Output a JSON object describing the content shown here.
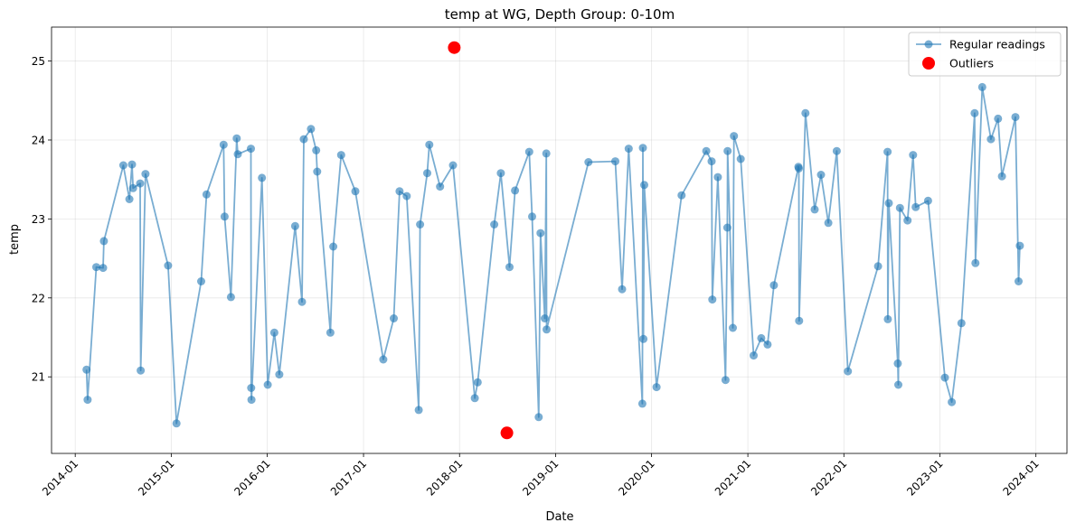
{
  "chart_data": {
    "type": "line",
    "title": "temp at WG, Depth Group: 0-10m",
    "xlabel": "Date",
    "ylabel": "temp",
    "x_ticks": [
      "2014-01",
      "2015-01",
      "2016-01",
      "2017-01",
      "2018-01",
      "2019-01",
      "2020-01",
      "2021-01",
      "2022-01",
      "2023-01",
      "2024-01"
    ],
    "y_ticks": [
      "21",
      "22",
      "23",
      "24",
      "25"
    ],
    "xlim": [
      "2013-10-03",
      "2024-04-28"
    ],
    "ylim": [
      20.03,
      25.43
    ],
    "grid": true,
    "legend_position": "upper right",
    "colors": {
      "regular": "#1f77b4",
      "outlier": "#ff0000"
    },
    "series": [
      {
        "name": "Regular readings",
        "marker": "circle",
        "points": [
          [
            "2014-02-13",
            21.09
          ],
          [
            "2014-02-17",
            20.71
          ],
          [
            "2014-03-22",
            22.39
          ],
          [
            "2014-04-17",
            22.38
          ],
          [
            "2014-04-20",
            22.72
          ],
          [
            "2014-07-03",
            23.68
          ],
          [
            "2014-07-26",
            23.25
          ],
          [
            "2014-08-05",
            23.69
          ],
          [
            "2014-08-09",
            23.39
          ],
          [
            "2014-09-05",
            23.45
          ],
          [
            "2014-09-07",
            21.08
          ],
          [
            "2014-09-25",
            23.57
          ],
          [
            "2014-12-20",
            22.41
          ],
          [
            "2015-01-21",
            20.41
          ],
          [
            "2015-04-25",
            22.21
          ],
          [
            "2015-05-15",
            23.31
          ],
          [
            "2015-07-19",
            23.94
          ],
          [
            "2015-07-23",
            23.03
          ],
          [
            "2015-08-16",
            22.01
          ],
          [
            "2015-09-07",
            24.02
          ],
          [
            "2015-09-11",
            23.82
          ],
          [
            "2015-10-31",
            23.89
          ],
          [
            "2015-11-01",
            20.86
          ],
          [
            "2015-11-02",
            20.71
          ],
          [
            "2015-12-12",
            23.52
          ],
          [
            "2016-01-03",
            20.9
          ],
          [
            "2016-01-28",
            21.56
          ],
          [
            "2016-02-16",
            21.03
          ],
          [
            "2016-04-16",
            22.91
          ],
          [
            "2016-05-12",
            21.95
          ],
          [
            "2016-05-19",
            24.01
          ],
          [
            "2016-06-15",
            24.14
          ],
          [
            "2016-07-05",
            23.87
          ],
          [
            "2016-07-09",
            23.6
          ],
          [
            "2016-08-28",
            21.56
          ],
          [
            "2016-09-08",
            22.65
          ],
          [
            "2016-10-08",
            23.81
          ],
          [
            "2016-12-01",
            23.35
          ],
          [
            "2017-03-17",
            21.22
          ],
          [
            "2017-04-26",
            21.74
          ],
          [
            "2017-05-18",
            23.35
          ],
          [
            "2017-06-14",
            23.29
          ],
          [
            "2017-07-30",
            20.58
          ],
          [
            "2017-08-04",
            22.93
          ],
          [
            "2017-08-31",
            23.58
          ],
          [
            "2017-09-08",
            23.94
          ],
          [
            "2017-10-19",
            23.41
          ],
          [
            "2017-12-07",
            23.68
          ],
          [
            "2018-02-28",
            20.73
          ],
          [
            "2018-03-11",
            20.93
          ],
          [
            "2018-05-13",
            22.93
          ],
          [
            "2018-06-07",
            23.58
          ],
          [
            "2018-07-10",
            22.39
          ],
          [
            "2018-07-31",
            23.36
          ],
          [
            "2018-09-23",
            23.85
          ],
          [
            "2018-10-04",
            23.03
          ],
          [
            "2018-10-29",
            20.49
          ],
          [
            "2018-11-05",
            22.82
          ],
          [
            "2018-11-21",
            21.74
          ],
          [
            "2018-11-27",
            23.83
          ],
          [
            "2018-11-28",
            21.6
          ],
          [
            "2019-05-06",
            23.72
          ],
          [
            "2019-08-16",
            23.73
          ],
          [
            "2019-09-11",
            22.11
          ],
          [
            "2019-10-06",
            23.89
          ],
          [
            "2019-11-27",
            20.66
          ],
          [
            "2019-11-29",
            23.9
          ],
          [
            "2019-12-01",
            21.48
          ],
          [
            "2019-12-04",
            23.43
          ],
          [
            "2020-01-20",
            20.87
          ],
          [
            "2020-04-24",
            23.3
          ],
          [
            "2020-07-27",
            23.86
          ],
          [
            "2020-08-16",
            23.73
          ],
          [
            "2020-08-19",
            21.98
          ],
          [
            "2020-09-09",
            23.53
          ],
          [
            "2020-10-08",
            20.96
          ],
          [
            "2020-10-15",
            22.89
          ],
          [
            "2020-10-16",
            23.86
          ],
          [
            "2020-11-05",
            21.62
          ],
          [
            "2020-11-09",
            24.05
          ],
          [
            "2020-12-05",
            23.76
          ],
          [
            "2021-01-23",
            21.27
          ],
          [
            "2021-02-21",
            21.49
          ],
          [
            "2021-03-17",
            21.41
          ],
          [
            "2021-04-10",
            22.16
          ],
          [
            "2021-07-12",
            23.66
          ],
          [
            "2021-07-14",
            23.64
          ],
          [
            "2021-07-15",
            21.71
          ],
          [
            "2021-08-08",
            24.34
          ],
          [
            "2021-09-12",
            23.12
          ],
          [
            "2021-10-06",
            23.56
          ],
          [
            "2021-11-03",
            22.95
          ],
          [
            "2021-12-05",
            23.86
          ],
          [
            "2022-01-16",
            21.07
          ],
          [
            "2022-05-11",
            22.4
          ],
          [
            "2022-06-16",
            23.85
          ],
          [
            "2022-06-17",
            21.73
          ],
          [
            "2022-06-21",
            23.2
          ],
          [
            "2022-07-25",
            21.17
          ],
          [
            "2022-07-27",
            20.9
          ],
          [
            "2022-08-02",
            23.14
          ],
          [
            "2022-08-31",
            22.98
          ],
          [
            "2022-09-21",
            23.81
          ],
          [
            "2022-10-01",
            23.15
          ],
          [
            "2022-11-17",
            23.23
          ],
          [
            "2023-01-20",
            20.99
          ],
          [
            "2023-02-15",
            20.68
          ],
          [
            "2023-03-24",
            21.68
          ],
          [
            "2023-05-13",
            24.34
          ],
          [
            "2023-05-16",
            22.44
          ],
          [
            "2023-06-11",
            24.67
          ],
          [
            "2023-07-14",
            24.01
          ],
          [
            "2023-08-10",
            24.27
          ],
          [
            "2023-08-25",
            23.54
          ],
          [
            "2023-10-15",
            24.29
          ],
          [
            "2023-10-27",
            22.21
          ],
          [
            "2023-11-01",
            22.66
          ]
        ]
      },
      {
        "name": "Outliers",
        "marker": "circle",
        "points": [
          [
            "2017-12-12",
            25.17
          ],
          [
            "2018-06-30",
            20.29
          ]
        ]
      }
    ]
  }
}
